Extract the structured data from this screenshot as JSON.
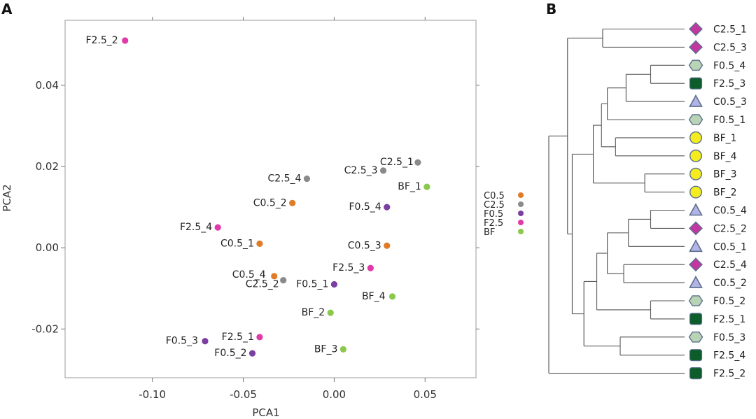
{
  "chart_data": [
    {
      "panel_label": "A",
      "type": "scatter",
      "xlabel": "PCA1",
      "ylabel": "PCA2",
      "xlim": [
        -0.148,
        0.078
      ],
      "ylim": [
        -0.032,
        0.056
      ],
      "xticks": [
        -0.1,
        -0.05,
        0.0,
        0.05
      ],
      "xtick_labels": [
        "-0.10",
        "-0.05",
        "0.00",
        "0.05"
      ],
      "yticks": [
        -0.02,
        0.0,
        0.02,
        0.04
      ],
      "ytick_labels": [
        "-0.02",
        "0.00",
        "0.02",
        "0.04"
      ],
      "grid": false,
      "legend_placement": "right, outside",
      "legend": [
        {
          "label": "C0.5",
          "color": "#e07b28"
        },
        {
          "label": "C2.5",
          "color": "#8a8a8a"
        },
        {
          "label": "F0.5",
          "color": "#7a3fa0"
        },
        {
          "label": "F2.5",
          "color": "#e03aa8"
        },
        {
          "label": "BF",
          "color": "#8cc84b"
        }
      ],
      "points": [
        {
          "label": "F2.5_2",
          "group": "F2.5",
          "x": -0.115,
          "y": 0.051
        },
        {
          "label": "C2.5_1",
          "group": "C2.5",
          "x": 0.046,
          "y": 0.021
        },
        {
          "label": "C2.5_3",
          "group": "C2.5",
          "x": 0.027,
          "y": 0.019
        },
        {
          "label": "BF_1",
          "group": "BF",
          "x": 0.051,
          "y": 0.015
        },
        {
          "label": "C2.5_4",
          "group": "C2.5",
          "x": -0.015,
          "y": 0.017
        },
        {
          "label": "C0.5_2",
          "group": "C0.5",
          "x": -0.023,
          "y": 0.011
        },
        {
          "label": "F0.5_4",
          "group": "F0.5",
          "x": 0.029,
          "y": 0.01
        },
        {
          "label": "F2.5_4",
          "group": "F2.5",
          "x": -0.064,
          "y": 0.005
        },
        {
          "label": "C0.5_1",
          "group": "C0.5",
          "x": -0.041,
          "y": 0.001
        },
        {
          "label": "C0.5_3",
          "group": "C0.5",
          "x": 0.029,
          "y": 0.0005
        },
        {
          "label": "F2.5_3",
          "group": "F2.5",
          "x": 0.02,
          "y": -0.005
        },
        {
          "label": "C0.5_4",
          "group": "C0.5",
          "x": -0.033,
          "y": -0.007
        },
        {
          "label": "C2.5_2",
          "group": "C2.5",
          "x": -0.028,
          "y": -0.008
        },
        {
          "label": "F0.5_1",
          "group": "F0.5",
          "x": 0.0,
          "y": -0.009
        },
        {
          "label": "BF_4",
          "group": "BF",
          "x": 0.032,
          "y": -0.012
        },
        {
          "label": "BF_2",
          "group": "BF",
          "x": -0.002,
          "y": -0.016
        },
        {
          "label": "F2.5_1",
          "group": "F2.5",
          "x": -0.041,
          "y": -0.022
        },
        {
          "label": "F0.5_3",
          "group": "F0.5",
          "x": -0.071,
          "y": -0.023
        },
        {
          "label": "F0.5_2",
          "group": "F0.5",
          "x": -0.045,
          "y": -0.026
        },
        {
          "label": "BF_3",
          "group": "BF",
          "x": 0.005,
          "y": -0.025
        }
      ]
    },
    {
      "panel_label": "B",
      "type": "dendrogram",
      "leaves": [
        {
          "label": "C2.5_1",
          "group": "C2.5"
        },
        {
          "label": "C2.5_3",
          "group": "C2.5"
        },
        {
          "label": "F0.5_4",
          "group": "F0.5"
        },
        {
          "label": "F2.5_3",
          "group": "F2.5"
        },
        {
          "label": "C0.5_3",
          "group": "C0.5"
        },
        {
          "label": "F0.5_1",
          "group": "F0.5"
        },
        {
          "label": "BF_1",
          "group": "BF"
        },
        {
          "label": "BF_4",
          "group": "BF"
        },
        {
          "label": "BF_3",
          "group": "BF"
        },
        {
          "label": "BF_2",
          "group": "BF"
        },
        {
          "label": "C0.5_4",
          "group": "C0.5"
        },
        {
          "label": "C2.5_2",
          "group": "C2.5"
        },
        {
          "label": "C0.5_1",
          "group": "C0.5"
        },
        {
          "label": "C2.5_4",
          "group": "C2.5"
        },
        {
          "label": "C0.5_2",
          "group": "C0.5"
        },
        {
          "label": "F0.5_2",
          "group": "F0.5"
        },
        {
          "label": "F2.5_1",
          "group": "F2.5"
        },
        {
          "label": "F0.5_3",
          "group": "F0.5"
        },
        {
          "label": "F2.5_4",
          "group": "F2.5"
        },
        {
          "label": "F2.5_2",
          "group": "F2.5"
        }
      ],
      "markers": {
        "C2.5": {
          "shape": "diamond",
          "color": "#c2379f"
        },
        "F0.5": {
          "shape": "hexagon",
          "color": "#b9d4b4"
        },
        "F2.5": {
          "shape": "rounded-square",
          "color": "#0d5c2b"
        },
        "C0.5": {
          "shape": "triangle",
          "color": "#b3b3e6"
        },
        "BF": {
          "shape": "circle",
          "color": "#f4ec1e"
        }
      },
      "marker_outline_color": "#5a6f8f",
      "clusters": [
        {
          "id": "m1",
          "children": [
            "C2.5_1",
            "C2.5_3"
          ],
          "height": 0.7
        },
        {
          "id": "m2",
          "children": [
            "F0.5_4",
            "F2.5_3"
          ],
          "height": 0.29
        },
        {
          "id": "m3",
          "children": [
            "m2",
            "C0.5_3"
          ],
          "height": 0.5
        },
        {
          "id": "m4",
          "children": [
            "m3",
            "F0.5_1"
          ],
          "height": 0.66
        },
        {
          "id": "m5",
          "children": [
            "BF_1",
            "BF_4"
          ],
          "height": 0.59
        },
        {
          "id": "m6",
          "children": [
            "m4",
            "m5"
          ],
          "height": 0.71
        },
        {
          "id": "m7",
          "children": [
            "BF_3",
            "BF_2"
          ],
          "height": 0.34
        },
        {
          "id": "m8",
          "children": [
            "m6",
            "m7"
          ],
          "height": 0.78
        },
        {
          "id": "m9",
          "children": [
            "C0.5_4",
            "C2.5_2"
          ],
          "height": 0.29
        },
        {
          "id": "m10",
          "children": [
            "m9",
            "C0.5_1"
          ],
          "height": 0.48
        },
        {
          "id": "m11",
          "children": [
            "C2.5_4",
            "C0.5_2"
          ],
          "height": 0.52
        },
        {
          "id": "m12",
          "children": [
            "m10",
            "m11"
          ],
          "height": 0.66
        },
        {
          "id": "m13",
          "children": [
            "F0.5_2",
            "F2.5_1"
          ],
          "height": 0.29
        },
        {
          "id": "m14",
          "children": [
            "m12",
            "m13"
          ],
          "height": 0.75
        },
        {
          "id": "m15",
          "children": [
            "F0.5_3",
            "F2.5_4"
          ],
          "height": 0.55
        },
        {
          "id": "m16",
          "children": [
            "m14",
            "m15"
          ],
          "height": 0.86
        },
        {
          "id": "m17",
          "children": [
            "m8",
            "m16"
          ],
          "height": 0.96
        },
        {
          "id": "m18",
          "children": [
            "m1",
            "m17"
          ],
          "height": 1.0
        },
        {
          "id": "m19",
          "children": [
            "m18",
            "F2.5_2"
          ],
          "height": 1.16
        }
      ]
    }
  ]
}
